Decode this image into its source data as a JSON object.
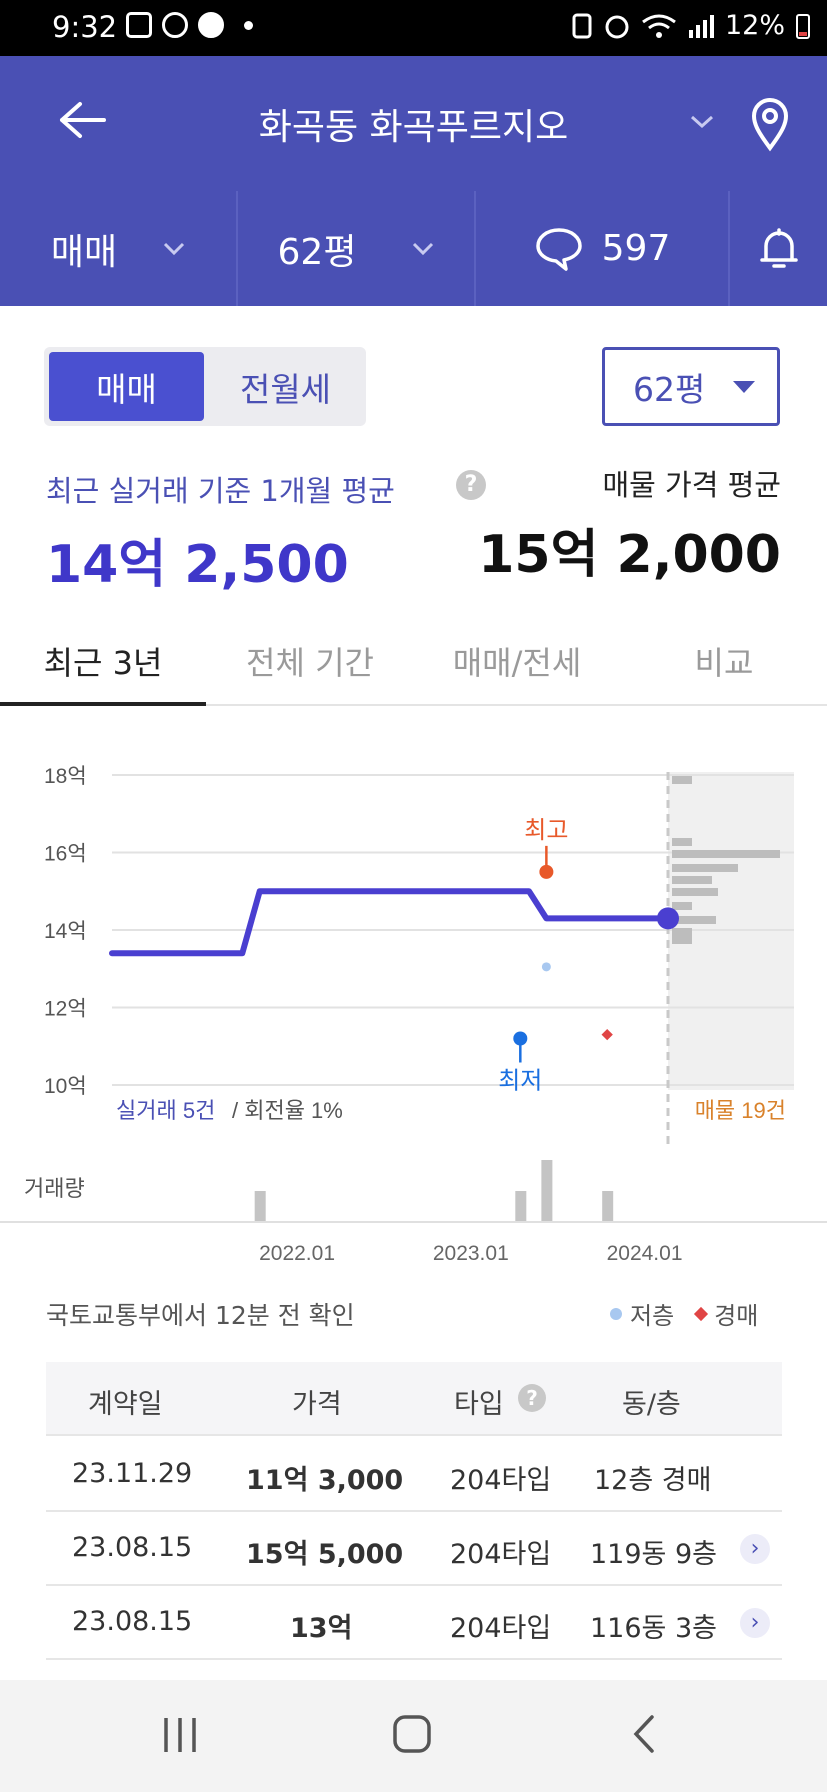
{
  "status_bar": {
    "time": "9:32",
    "battery": "12%"
  },
  "header": {
    "title": "화곡동 화곡푸르지오"
  },
  "sub_bar": {
    "deal_type": "매매",
    "size": "62평",
    "comments": "597"
  },
  "toggle": {
    "sale": "매매",
    "rent": "전월세"
  },
  "size_select": {
    "value": "62평"
  },
  "summary": {
    "recent_label": "최근 실거래 기준 1개월 평균",
    "recent_value": "14억 2,500",
    "listing_label": "매물 가격 평균",
    "listing_value": "15억 2,000"
  },
  "tabs": [
    "최근 3년",
    "전체 기간",
    "매매/전세",
    "비교"
  ],
  "chart_data": {
    "type": "line",
    "y_ticks": [
      "18억",
      "16억",
      "14억",
      "12억",
      "10억"
    ],
    "ylim": [
      10,
      18
    ],
    "x_ticks": [
      "2022.01",
      "2023.01",
      "2024.01"
    ],
    "series": [
      {
        "values": [
          [
            2021.05,
            13.4
          ],
          [
            2021.8,
            13.4
          ],
          [
            2021.9,
            15.0
          ],
          [
            2023.45,
            15.0
          ],
          [
            2023.55,
            14.3
          ],
          [
            2024.25,
            14.3
          ]
        ]
      }
    ],
    "highest_label": "최고",
    "highest_point": [
      2023.55,
      15.5
    ],
    "lowest_label": "최저",
    "lowest_point": [
      2023.4,
      11.2
    ],
    "low_floor_point": [
      2023.55,
      13.05
    ],
    "auction_point": [
      2023.9,
      11.3
    ],
    "deals_label": "실거래 5건",
    "turnover_label": "/ 회전율 1%",
    "listings_label": "매물 19건",
    "volume_label": "거래량",
    "volume": [
      [
        2021.9,
        1
      ],
      [
        2023.4,
        1
      ],
      [
        2023.55,
        2
      ],
      [
        2023.9,
        1
      ]
    ]
  },
  "source_note": "국토교통부에서 12분 전 확인",
  "legend": {
    "low_floor": "저층",
    "auction": "경매",
    "low_floor_color": "#a8c8f0",
    "auction_color": "#e04545"
  },
  "table": {
    "headers": [
      "계약일",
      "가격",
      "타입",
      "동/층"
    ],
    "rows": [
      {
        "date": "23.11.29",
        "price": "11억 3,000",
        "type": "204타입",
        "unit": "12층 경매"
      },
      {
        "date": "23.08.15",
        "price": "15억 5,000",
        "type": "204타입",
        "unit": "119동 9층"
      },
      {
        "date": "23.08.15",
        "price": "13억",
        "type": "204타입",
        "unit": "116동 3층"
      }
    ]
  },
  "colors": {
    "primary": "#4a50b4",
    "line": "#4a3fd0",
    "highest": "#e8592a",
    "lowest": "#1a6fe0",
    "listing": "#d9822b"
  }
}
